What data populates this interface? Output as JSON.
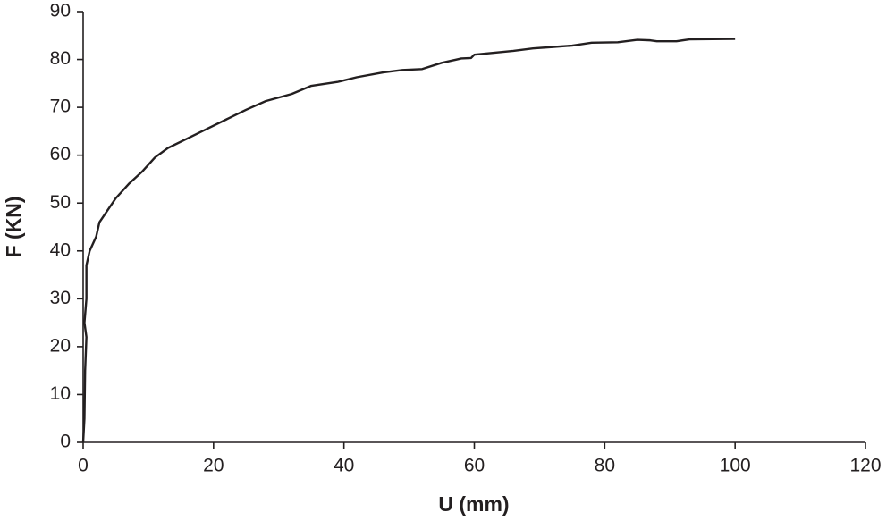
{
  "chart_data": {
    "type": "line",
    "xlabel": "U (mm)",
    "ylabel": "F (KN)",
    "x": [
      0,
      0.2,
      0.3,
      0.5,
      0.2,
      0.5,
      0.5,
      0.5,
      1,
      2,
      2.5,
      4,
      5,
      7,
      9,
      11,
      13,
      16,
      19,
      22,
      25,
      28,
      32,
      35,
      39,
      42,
      46,
      49,
      52,
      55,
      58,
      59.5,
      60,
      63,
      66,
      69,
      72,
      75,
      78,
      82,
      85,
      87,
      88,
      91,
      93,
      100
    ],
    "values": [
      0,
      5,
      15,
      22,
      25,
      30,
      33,
      37,
      40,
      43,
      46,
      49,
      51,
      54,
      56.5,
      59.5,
      61.5,
      63.5,
      65.5,
      67.5,
      69.5,
      71.3,
      72.8,
      74.5,
      75.3,
      76.3,
      77.3,
      77.8,
      78,
      79.3,
      80.2,
      80.3,
      81,
      81.4,
      81.8,
      82.3,
      82.6,
      82.9,
      83.5,
      83.6,
      84.1,
      84,
      83.8,
      83.8,
      84.2,
      84.3
    ],
    "color": "#231f20",
    "xlim": [
      0,
      120
    ],
    "xticks": [
      0,
      20,
      40,
      60,
      80,
      100,
      120
    ],
    "ylim": [
      0,
      90
    ],
    "yticks": [
      0,
      10,
      20,
      30,
      40,
      50,
      60,
      70,
      80,
      90
    ]
  }
}
